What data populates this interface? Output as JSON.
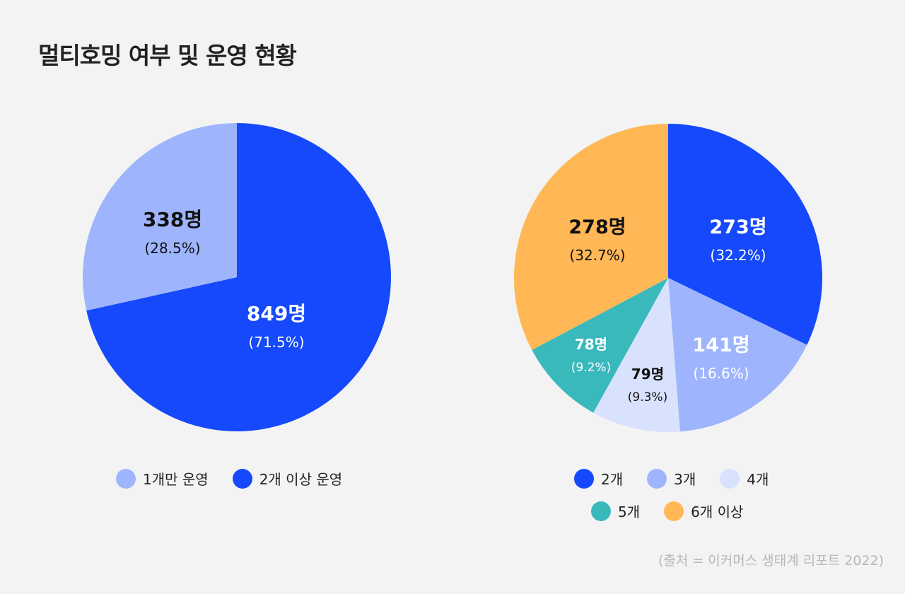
{
  "title": "멀티호밍 여부 및 운영 현황",
  "source": "(출처 = 이커머스 생태계 리포트 2022)",
  "colors": {
    "blue": "#1549fb",
    "light_blue": "#9eb5fd",
    "pale_blue": "#d9e2fd",
    "teal": "#3ab9bd",
    "orange": "#ffb855"
  },
  "chart_data": [
    {
      "type": "pie",
      "title": "",
      "slices": [
        {
          "label": "2개 이상 운영",
          "value": 849,
          "count_label": "849명",
          "percent_label": "(71.5%)",
          "color": "#1549fb",
          "text_color": "#ffffff"
        },
        {
          "label": "1개만 운영",
          "value": 338,
          "count_label": "338명",
          "percent_label": "(28.5%)",
          "color": "#9eb5fd",
          "text_color": "#111111"
        }
      ],
      "legend": [
        "1개만 운영",
        "2개 이상 운영"
      ],
      "legend_colors": [
        "#9eb5fd",
        "#1549fb"
      ]
    },
    {
      "type": "pie",
      "title": "",
      "slices": [
        {
          "label": "2개",
          "value": 273,
          "count_label": "273명",
          "percent_label": "(32.2%)",
          "color": "#1549fb",
          "text_color": "#ffffff"
        },
        {
          "label": "3개",
          "value": 141,
          "count_label": "141명",
          "percent_label": "(16.6%)",
          "color": "#9eb5fd",
          "text_color": "#ffffff"
        },
        {
          "label": "4개",
          "value": 79,
          "count_label": "79명",
          "percent_label": "(9.3%)",
          "color": "#d9e2fd",
          "text_color": "#111111"
        },
        {
          "label": "5개",
          "value": 78,
          "count_label": "78명",
          "percent_label": "(9.2%)",
          "color": "#3ab9bd",
          "text_color": "#ffffff"
        },
        {
          "label": "6개 이상",
          "value": 278,
          "count_label": "278명",
          "percent_label": "(32.7%)",
          "color": "#ffb855",
          "text_color": "#111111"
        }
      ],
      "legend": [
        "2개",
        "3개",
        "4개",
        "5개",
        "6개 이상"
      ],
      "legend_colors": [
        "#1549fb",
        "#9eb5fd",
        "#d9e2fd",
        "#3ab9bd",
        "#ffb855"
      ]
    }
  ]
}
